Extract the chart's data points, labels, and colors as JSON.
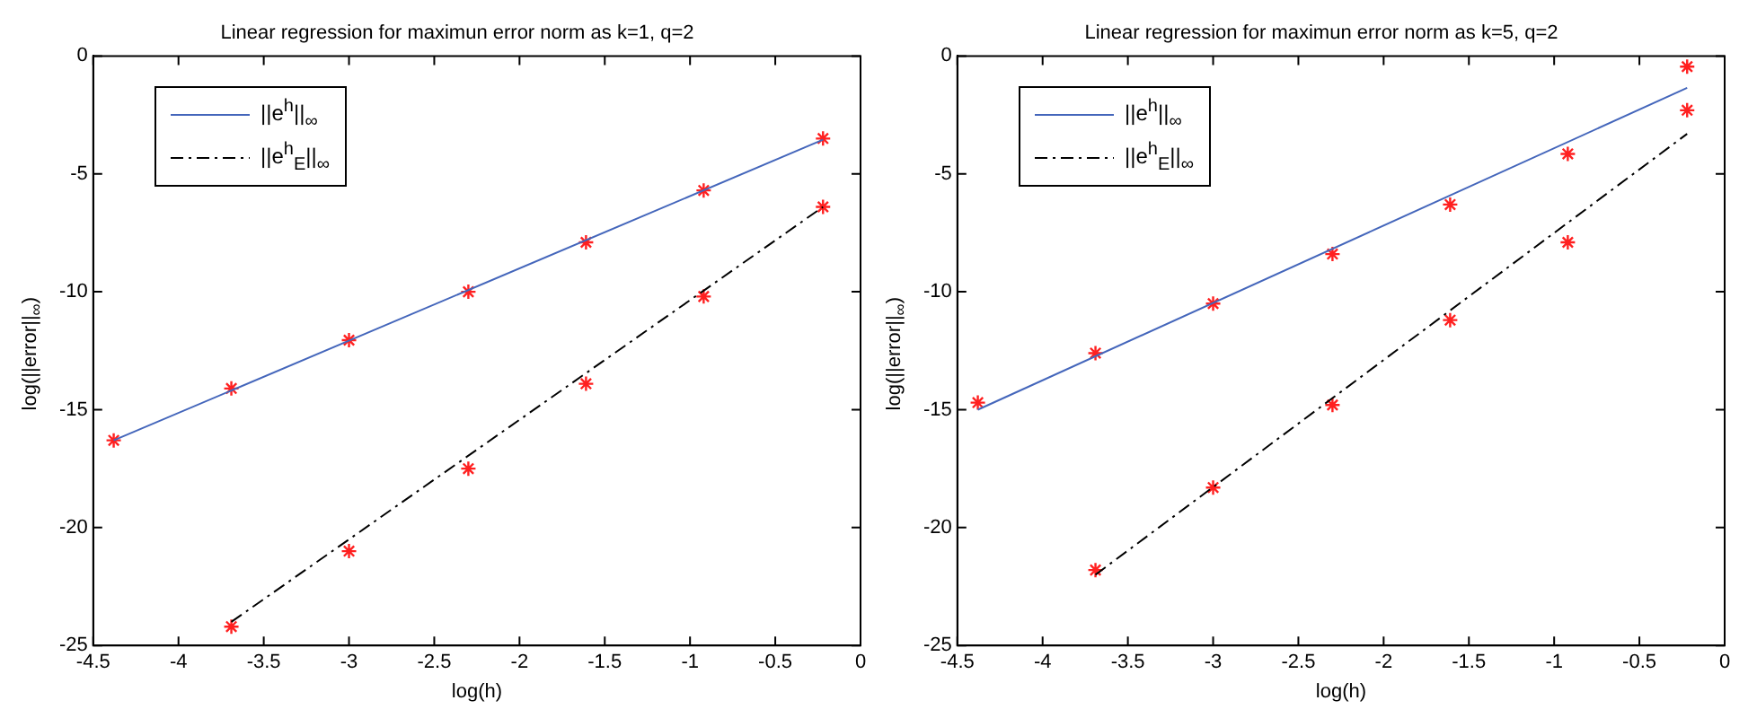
{
  "chart_data": [
    {
      "type": "scatter",
      "title": "Linear regression for maximun error norm as k=1, q=2",
      "xlabel": "log(h)",
      "ylabel": "log(||error||$_{∞}$)",
      "xlim": [
        -4.5,
        0
      ],
      "xticks": [
        -4.5,
        -4,
        -3.5,
        -3,
        -2.5,
        -2,
        -1.5,
        -1,
        -0.5,
        0
      ],
      "ylim": [
        -25,
        0
      ],
      "yticks": [
        -25,
        -20,
        -15,
        -10,
        -5,
        0
      ],
      "grid": false,
      "legend": "top left",
      "series": [
        {
          "name": "||e$^{h}$||$_{∞}$",
          "type": "line",
          "color": "#4466bb",
          "line_style": "solid",
          "marker": "none",
          "x": [
            -4.38,
            -0.22
          ],
          "values": [
            -16.3,
            -3.55
          ]
        },
        {
          "name": "||e$^{h}$$_{E}$||$_{∞}$",
          "type": "line",
          "color": "#000000",
          "line_style": "dashed",
          "marker": "none",
          "x": [
            -3.69,
            -0.22
          ],
          "values": [
            -24.0,
            -6.4
          ]
        },
        {
          "type": "scatter",
          "color": "#ff2020",
          "marker": "cross",
          "x": [
            -4.38,
            -3.69,
            -3.0,
            -2.3,
            -1.61,
            -0.92,
            -0.22
          ],
          "values": [
            -16.3,
            -14.1,
            -12.05,
            -10.0,
            -7.9,
            -5.7,
            -3.5
          ]
        },
        {
          "type": "scatter",
          "color": "#ff2020",
          "marker": "cross",
          "x": [
            -3.69,
            -3.0,
            -2.3,
            -1.61,
            -0.92,
            -0.22
          ],
          "values": [
            -24.2,
            -21.0,
            -17.5,
            -13.9,
            -10.2,
            -6.4
          ]
        }
      ]
    },
    {
      "type": "scatter",
      "title": "Linear regression for maximun error norm as k=5, q=2",
      "xlabel": "log(h)",
      "ylabel": "log(||error||$_{∞}$)",
      "xlim": [
        -4.5,
        0
      ],
      "xticks": [
        -4.5,
        -4,
        -3.5,
        -3,
        -2.5,
        -2,
        -1.5,
        -1,
        -0.5,
        0
      ],
      "ylim": [
        -25,
        0
      ],
      "yticks": [
        -25,
        -20,
        -15,
        -10,
        -5,
        0
      ],
      "grid": false,
      "legend": "top left",
      "series": [
        {
          "name": "||e$^{h}$||$_{∞}$",
          "type": "line",
          "color": "#4466bb",
          "line_style": "solid",
          "marker": "none",
          "x": [
            -4.38,
            -0.22
          ],
          "values": [
            -15.0,
            -1.35
          ]
        },
        {
          "name": "||e$^{h}$$_{E}$||$_{∞}$",
          "type": "line",
          "color": "#000000",
          "line_style": "dashed",
          "marker": "none",
          "x": [
            -3.69,
            -0.22
          ],
          "values": [
            -22.0,
            -3.3
          ]
        },
        {
          "type": "scatter",
          "color": "#ff2020",
          "marker": "cross",
          "x": [
            -4.38,
            -3.69,
            -3.0,
            -2.3,
            -1.61,
            -0.92,
            -0.22
          ],
          "values": [
            -14.7,
            -12.6,
            -10.5,
            -8.4,
            -6.3,
            -4.15,
            -0.45
          ]
        },
        {
          "type": "scatter",
          "color": "#ff2020",
          "marker": "cross",
          "x": [
            -3.69,
            -3.0,
            -2.3,
            -1.61,
            -0.92,
            -0.22
          ],
          "values": [
            -21.8,
            -18.3,
            -14.8,
            -11.2,
            -7.9,
            -2.3
          ]
        }
      ]
    }
  ]
}
